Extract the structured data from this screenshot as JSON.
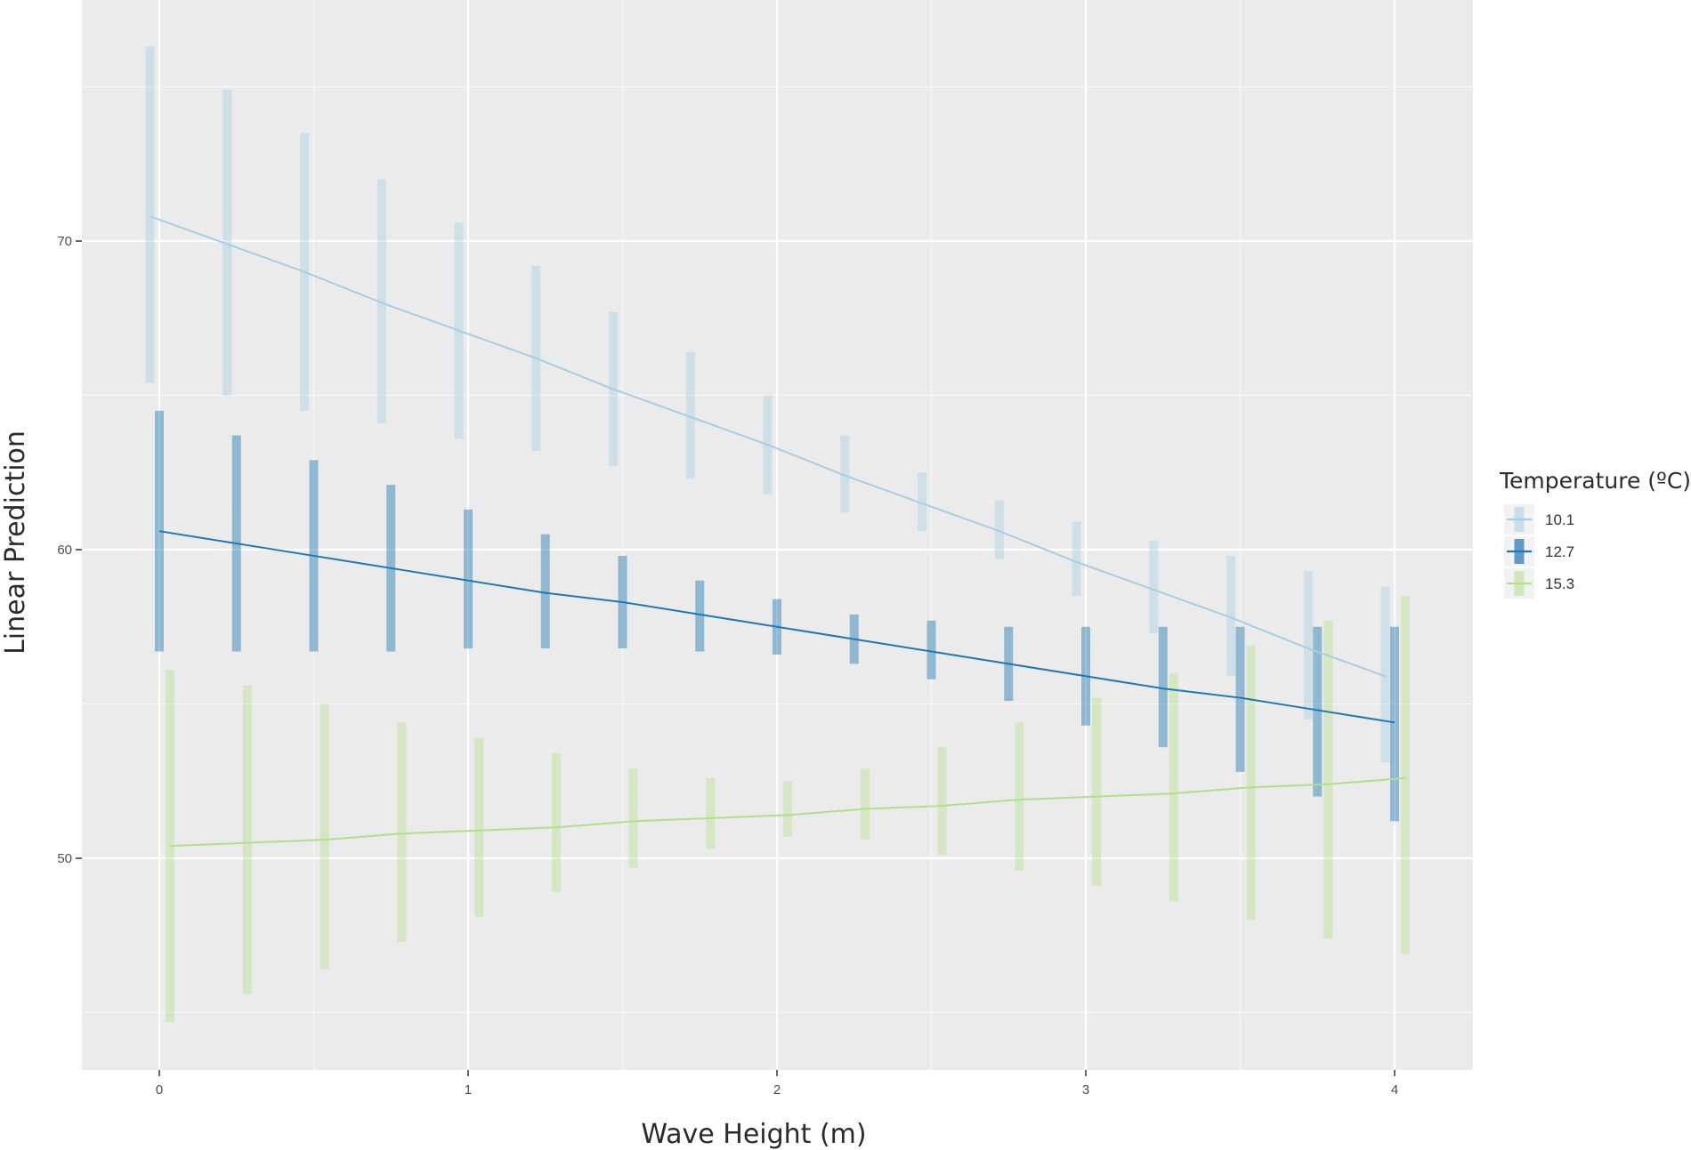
{
  "chart_data": {
    "type": "line",
    "xlabel": "Wave Height (m)",
    "ylabel": "Linear Prediction",
    "xlim": [
      -0.25,
      4.25
    ],
    "ylim": [
      43,
      76.5
    ],
    "x_ticks": [
      0,
      1,
      2,
      3,
      4
    ],
    "y_ticks": [
      50,
      60,
      70
    ],
    "grid": true,
    "legend": {
      "title": "Temperature (ºC)",
      "placement": "right"
    },
    "x": [
      0,
      0.25,
      0.5,
      0.75,
      1,
      1.25,
      1.5,
      1.75,
      2,
      2.25,
      2.5,
      2.75,
      3,
      3.25,
      3.5,
      3.75,
      4
    ],
    "series": [
      {
        "name": "10.1",
        "color": "#a6cee3",
        "y": [
          70.8,
          69.9,
          69.0,
          68.0,
          67.1,
          66.2,
          65.2,
          64.3,
          63.4,
          62.4,
          61.5,
          60.6,
          59.6,
          58.7,
          57.8,
          56.8,
          55.9
        ],
        "lower": [
          65.4,
          65.0,
          64.5,
          64.1,
          63.6,
          63.2,
          62.7,
          62.3,
          61.8,
          61.2,
          60.6,
          59.7,
          58.5,
          57.3,
          55.9,
          54.5,
          53.1
        ],
        "upper": [
          76.3,
          74.9,
          73.5,
          72.0,
          70.6,
          69.2,
          67.7,
          66.4,
          65.0,
          63.7,
          62.5,
          61.6,
          60.9,
          60.3,
          59.8,
          59.3,
          58.8
        ]
      },
      {
        "name": "12.7",
        "color": "#1f78b4",
        "y": [
          60.6,
          60.2,
          59.8,
          59.4,
          59.0,
          58.6,
          58.3,
          57.9,
          57.5,
          57.1,
          56.7,
          56.3,
          55.9,
          55.5,
          55.2,
          54.8,
          54.4
        ],
        "lower": [
          56.7,
          56.7,
          56.7,
          56.7,
          56.8,
          56.8,
          56.8,
          56.7,
          56.6,
          56.3,
          55.8,
          55.1,
          54.3,
          53.6,
          52.8,
          52.0,
          51.2
        ],
        "upper": [
          64.5,
          63.7,
          62.9,
          62.1,
          61.3,
          60.5,
          59.8,
          59.0,
          58.4,
          57.9,
          57.7,
          57.5,
          57.5,
          57.5,
          57.5,
          57.5,
          57.5
        ]
      },
      {
        "name": "15.3",
        "color": "#b2df8a",
        "y": [
          50.4,
          50.5,
          50.6,
          50.8,
          50.9,
          51.0,
          51.2,
          51.3,
          51.4,
          51.6,
          51.7,
          51.9,
          52.0,
          52.1,
          52.3,
          52.4,
          52.6
        ],
        "lower": [
          44.7,
          45.6,
          46.4,
          47.3,
          48.1,
          48.9,
          49.7,
          50.3,
          50.7,
          50.6,
          50.1,
          49.6,
          49.1,
          48.6,
          48.0,
          47.4,
          46.9
        ],
        "upper": [
          56.1,
          55.6,
          55.0,
          54.4,
          53.9,
          53.4,
          52.9,
          52.6,
          52.5,
          52.9,
          53.6,
          54.4,
          55.2,
          56.0,
          56.9,
          57.7,
          58.5
        ]
      }
    ]
  }
}
